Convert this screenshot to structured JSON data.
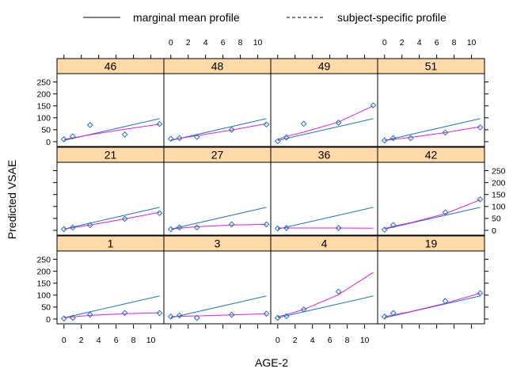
{
  "chart_data": {
    "type": "line",
    "layout": "trellis",
    "columns": 4,
    "rows": 3,
    "xlabel": "AGE-2",
    "ylabel": "Predicted VSAE",
    "xlim": [
      -0.8,
      11.5
    ],
    "ylim": [
      -20,
      285
    ],
    "x_ticks": [
      0,
      2,
      4,
      6,
      8,
      10
    ],
    "y_ticks": [
      0,
      50,
      100,
      150,
      200,
      250
    ],
    "x_tick_labels": [
      "0",
      "2",
      "4",
      "6",
      "8",
      "10"
    ],
    "y_tick_labels": [
      "0",
      "50",
      "100",
      "150",
      "200",
      "250"
    ],
    "legend": {
      "position": "top",
      "entries": [
        {
          "label": "marginal mean profile",
          "style": "solid"
        },
        {
          "label": "subject-specific profile",
          "style": "dashed"
        }
      ]
    },
    "colors": {
      "marginal": "#1f77b4",
      "subject": "#e020e0",
      "observed": "#1f77b4",
      "strip": "#ffd9a8"
    },
    "x_grid": [
      0,
      1,
      3,
      7,
      11
    ],
    "panels": [
      {
        "id": "46",
        "row": 0,
        "col": 0,
        "marginal": [
          5.2,
          13.5,
          30.1,
          63.3,
          96.5
        ],
        "subject": [
          10,
          16,
          29,
          52,
          73
        ],
        "observed_x": [
          0,
          1,
          3,
          7,
          11
        ],
        "observed_y": [
          10,
          22,
          70,
          30,
          74
        ]
      },
      {
        "id": "48",
        "row": 0,
        "col": 1,
        "marginal": [
          5.2,
          13.5,
          30.1,
          63.3,
          96.5
        ],
        "subject": [
          8,
          14,
          25,
          49,
          75
        ],
        "observed_x": [
          0,
          1,
          3,
          7,
          11
        ],
        "observed_y": [
          12,
          15,
          20,
          50,
          72
        ]
      },
      {
        "id": "49",
        "row": 0,
        "col": 2,
        "marginal": [
          5.2,
          13.5,
          30.1,
          63.3,
          96.5
        ],
        "subject": [
          10,
          22,
          40,
          82,
          150
        ],
        "observed_x": [
          0,
          1,
          3,
          7,
          11
        ],
        "observed_y": [
          2,
          18,
          75,
          80,
          152
        ]
      },
      {
        "id": "51",
        "row": 0,
        "col": 3,
        "marginal": [
          5.2,
          13.5,
          30.1,
          63.3,
          96.5
        ],
        "subject": [
          5,
          10,
          18,
          38,
          63
        ],
        "observed_x": [
          0,
          1,
          3,
          7,
          11
        ],
        "observed_y": [
          5,
          15,
          15,
          38,
          60
        ]
      },
      {
        "id": "21",
        "row": 1,
        "col": 0,
        "marginal": [
          5.2,
          13.5,
          30.1,
          63.3,
          96.5
        ],
        "subject": [
          6,
          11,
          22,
          48,
          75
        ],
        "observed_x": [
          0,
          1,
          3,
          7,
          11
        ],
        "observed_y": [
          5,
          12,
          22,
          48,
          72
        ]
      },
      {
        "id": "27",
        "row": 1,
        "col": 1,
        "marginal": [
          5.2,
          13.5,
          30.1,
          63.3,
          96.5
        ],
        "subject": [
          5,
          9,
          15,
          22,
          25
        ],
        "observed_x": [
          0,
          1,
          3,
          7,
          11
        ],
        "observed_y": [
          5,
          12,
          12,
          25,
          25
        ]
      },
      {
        "id": "36",
        "row": 1,
        "col": 2,
        "marginal": [
          5.2,
          13.5,
          30.1,
          63.3,
          96.5
        ],
        "subject": [
          10,
          10,
          10,
          10,
          9
        ],
        "observed_x": [
          0,
          1,
          7
        ],
        "observed_y": [
          8,
          10,
          10
        ]
      },
      {
        "id": "42",
        "row": 1,
        "col": 3,
        "marginal": [
          5.2,
          13.5,
          30.1,
          63.3,
          96.5
        ],
        "subject": [
          8,
          17,
          32,
          70,
          128
        ],
        "observed_x": [
          0,
          1,
          7,
          11
        ],
        "observed_y": [
          3,
          22,
          75,
          130
        ]
      },
      {
        "id": "1",
        "row": 2,
        "col": 0,
        "marginal": [
          5.2,
          13.5,
          30.1,
          63.3,
          96.5
        ],
        "subject": [
          5,
          9,
          15,
          22,
          26
        ],
        "observed_x": [
          0,
          1,
          3,
          7,
          11
        ],
        "observed_y": [
          2,
          5,
          18,
          25,
          25
        ]
      },
      {
        "id": "3",
        "row": 2,
        "col": 1,
        "marginal": [
          5.2,
          13.5,
          30.1,
          63.3,
          96.5
        ],
        "subject": [
          10,
          11,
          13,
          17,
          22
        ],
        "observed_x": [
          0,
          1,
          3,
          7,
          11
        ],
        "observed_y": [
          10,
          15,
          5,
          18,
          22
        ]
      },
      {
        "id": "4",
        "row": 2,
        "col": 2,
        "marginal": [
          5.2,
          13.5,
          30.1,
          63.3,
          96.5
        ],
        "subject": [
          10,
          18,
          40,
          102,
          195
        ],
        "observed_x": [
          0,
          1,
          3,
          7
        ],
        "observed_y": [
          5,
          12,
          40,
          115
        ]
      },
      {
        "id": "19",
        "row": 2,
        "col": 3,
        "marginal": [
          5.2,
          13.5,
          30.1,
          63.3,
          96.5
        ],
        "subject": [
          10,
          17,
          31,
          66,
          108
        ],
        "observed_x": [
          0,
          1,
          7,
          11
        ],
        "observed_y": [
          10,
          25,
          75,
          108
        ]
      }
    ]
  }
}
